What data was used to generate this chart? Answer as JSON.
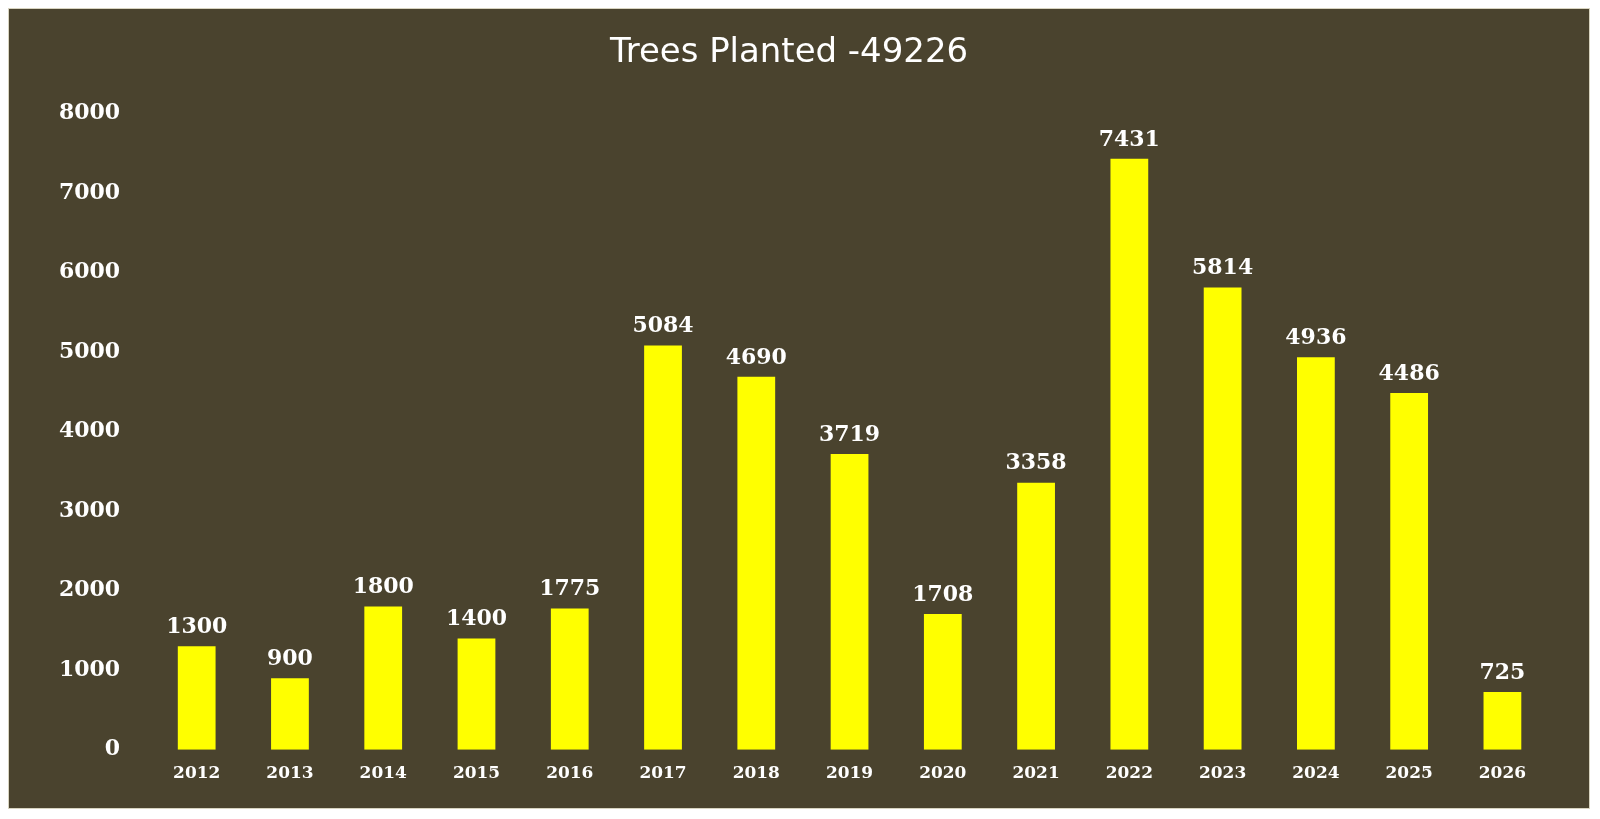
{
  "chart_data": {
    "type": "bar",
    "title": "Trees Planted -49226",
    "categories": [
      "2012",
      "2013",
      "2014",
      "2015",
      "2016",
      "2017",
      "2018",
      "2019",
      "2020",
      "2021",
      "2022",
      "2023",
      "2024",
      "2025",
      "2026"
    ],
    "values": [
      1300,
      900,
      1800,
      1400,
      1775,
      5084,
      4690,
      3719,
      1708,
      3358,
      7431,
      5814,
      4936,
      4486,
      725
    ],
    "color": "#ffff00",
    "ylim": [
      0,
      8000
    ],
    "yticks": [
      0,
      1000,
      2000,
      3000,
      4000,
      5000,
      6000,
      7000,
      8000
    ],
    "grid": false,
    "data_labels": true
  }
}
